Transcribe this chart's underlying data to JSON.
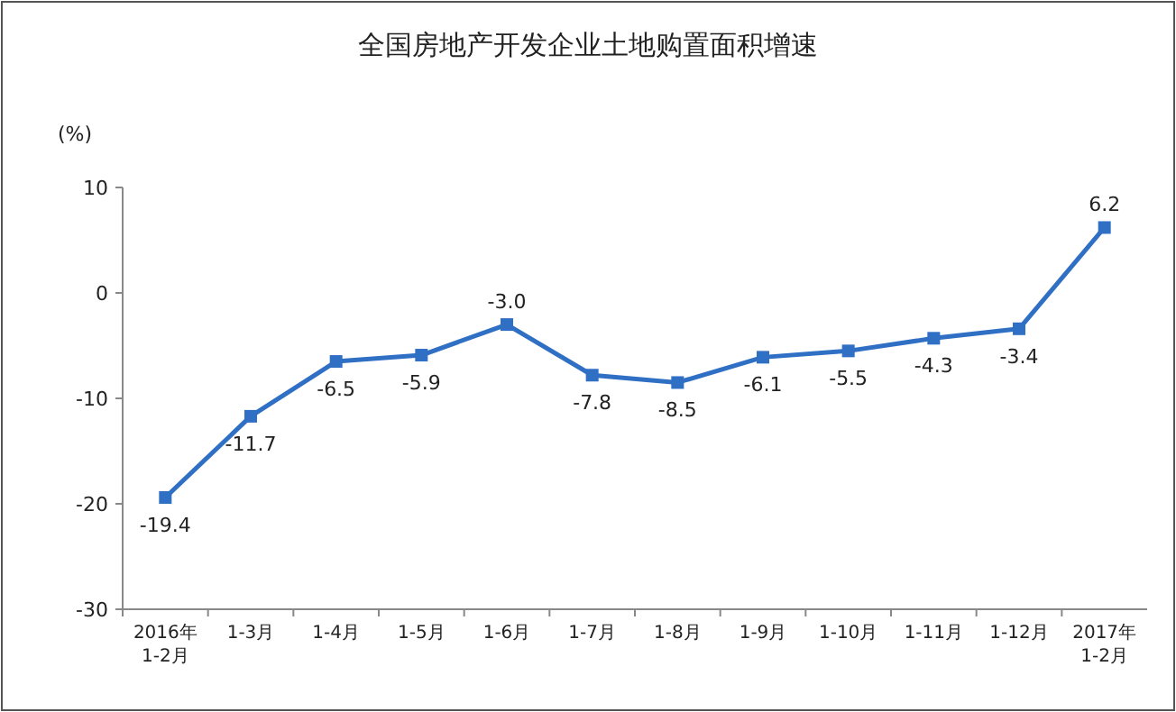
{
  "chart_data": {
    "type": "line",
    "title": "全国房地产开发企业土地购置面积增速",
    "ylabel": "(%)",
    "categories": [
      "2016年\n1-2月",
      "1-3月",
      "1-4月",
      "1-5月",
      "1-6月",
      "1-7月",
      "1-8月",
      "1-9月",
      "1-10月",
      "1-11月",
      "1-12月",
      "2017年\n1-2月"
    ],
    "series": [
      {
        "color": "#2f6fc4",
        "values": [
          -19.4,
          -11.7,
          -6.5,
          -5.9,
          -3.0,
          -7.8,
          -8.5,
          -6.1,
          -5.5,
          -4.3,
          -3.4,
          6.2
        ],
        "value_labels": [
          "-19.4",
          "-11.7",
          "-6.5",
          "-5.9",
          "-3.0",
          "-7.8",
          "-8.5",
          "-6.1",
          "-5.5",
          "-4.3",
          "-3.4",
          "6.2"
        ]
      }
    ],
    "ylim": [
      -30,
      10
    ],
    "yticks": [
      -30,
      -20,
      -10,
      0,
      10
    ],
    "marker": "square"
  }
}
